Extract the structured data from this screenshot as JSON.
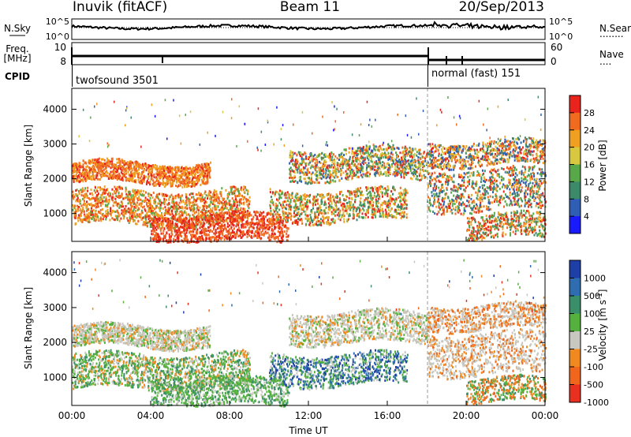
{
  "header": {
    "station": "Inuvik (fitACF)",
    "beam": "Beam 11",
    "date": "20/Sep/2013"
  },
  "chart_data": [
    {
      "type": "line",
      "panel": "noise",
      "ylabel": "N.Sky",
      "ylabel_right": "N.Search",
      "y_ticks": [
        "10^5",
        "10^0"
      ],
      "y_ticks_right": [
        "10^5",
        "10^0"
      ],
      "legend_right": "........"
    },
    {
      "type": "line",
      "panel": "frequency",
      "ylabel_top": "Freq.",
      "ylabel_bottom": "[MHz]",
      "y_ticks": [
        "10",
        "8"
      ],
      "y_ticks_right": [
        "60",
        "0"
      ],
      "ylabel_right": "Nave",
      "legend_right": "....",
      "ylim": [
        8,
        10
      ]
    },
    {
      "type": "table",
      "panel": "cpid",
      "label": "CPID",
      "segments": [
        {
          "name": "twofsound 3501",
          "start": "00:00",
          "end": "18:00"
        },
        {
          "name": "normal (fast) 151",
          "start": "18:00",
          "end": "24:00"
        }
      ]
    },
    {
      "type": "heatmap",
      "panel": "power",
      "ylabel": "Slant Range [km]",
      "y_ticks": [
        1000,
        2000,
        3000,
        4000
      ],
      "ylim": [
        200,
        4600
      ],
      "colorbar_label": "Power [dB]",
      "colorbar_ticks": [
        "4",
        "8",
        "12",
        "16",
        "20",
        "24",
        "28"
      ],
      "colorbar_colors": [
        "#1a1aff",
        "#2f5fb5",
        "#3d8a6a",
        "#58a84a",
        "#d8c840",
        "#f0a020",
        "#f06a20",
        "#e8241c"
      ]
    },
    {
      "type": "heatmap",
      "panel": "velocity",
      "ylabel": "Slant Range [km]",
      "y_ticks": [
        1000,
        2000,
        3000,
        4000
      ],
      "ylim": [
        200,
        4600
      ],
      "colorbar_label": "Velocity [m s^-1]",
      "colorbar_ticks": [
        "1000",
        "500",
        "100",
        "25",
        "-25",
        "-100",
        "-500",
        "-1000"
      ],
      "colorbar_colors": [
        "#1e3fa8",
        "#2e6db0",
        "#3a8f6a",
        "#55b13e",
        "#c8c8c0",
        "#f08a20",
        "#f0661c",
        "#e83020"
      ]
    }
  ],
  "time_axis": {
    "label": "Time UT",
    "ticks": [
      "00:00",
      "04:00",
      "08:00",
      "12:00",
      "16:00",
      "20:00",
      "00:00"
    ]
  }
}
